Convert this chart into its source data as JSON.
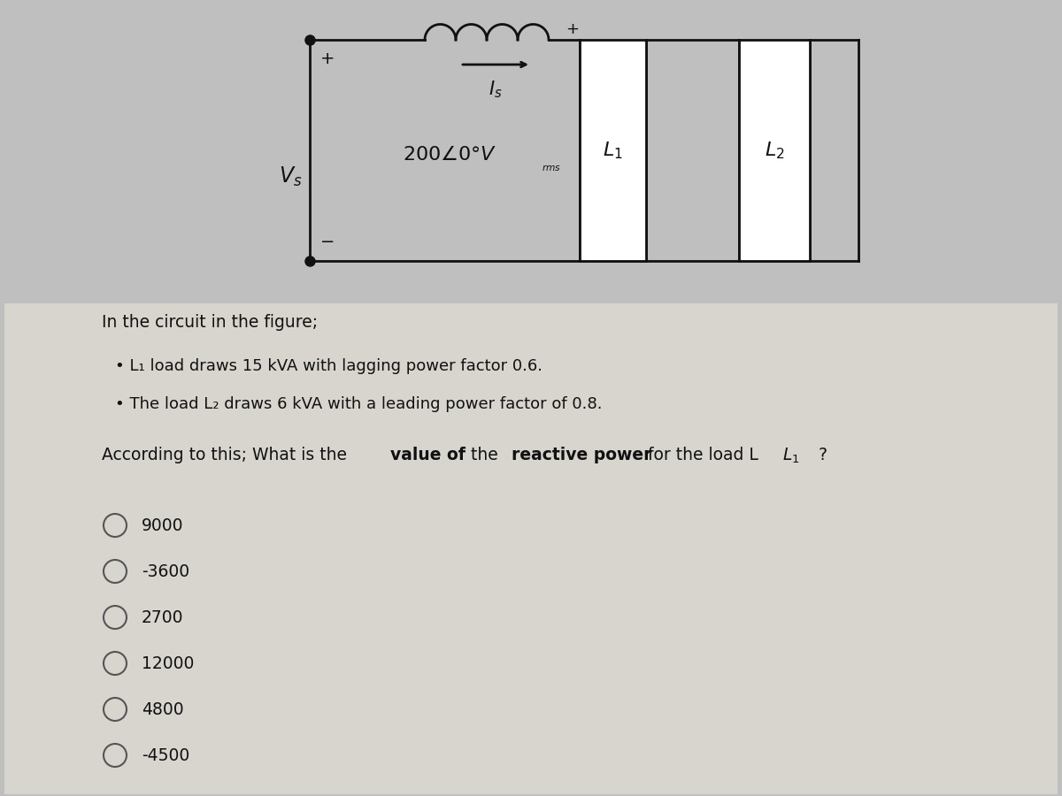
{
  "background_color": "#c0bfbf",
  "circuit_bg": "#e8e6e0",
  "circuit_color": "#111111",
  "text_color": "#111111",
  "problem_text": "In the circuit in the figure;",
  "bullet1": "L₁ load draws 15 kVA with lagging power factor 0.6.",
  "bullet2": "The load L₂ draws 6 kVA with a leading power factor of 0.8.",
  "question_pre": "According to this; What is the ",
  "question_bold1": "value of",
  "question_mid": " the ",
  "question_bold2": "reactive power",
  "question_post": " for the load L",
  "question_end": " ?",
  "options": [
    "9000",
    "-3600",
    "2700",
    "12000",
    "4800",
    "-4500"
  ],
  "vs_label": "$V_s$",
  "voltage_label": "$200\\angle0°V$",
  "rms_label": "$_{rms}$",
  "is_label": "$I_s$",
  "l1_label": "$L_1$",
  "l2_label": "$L_2$"
}
